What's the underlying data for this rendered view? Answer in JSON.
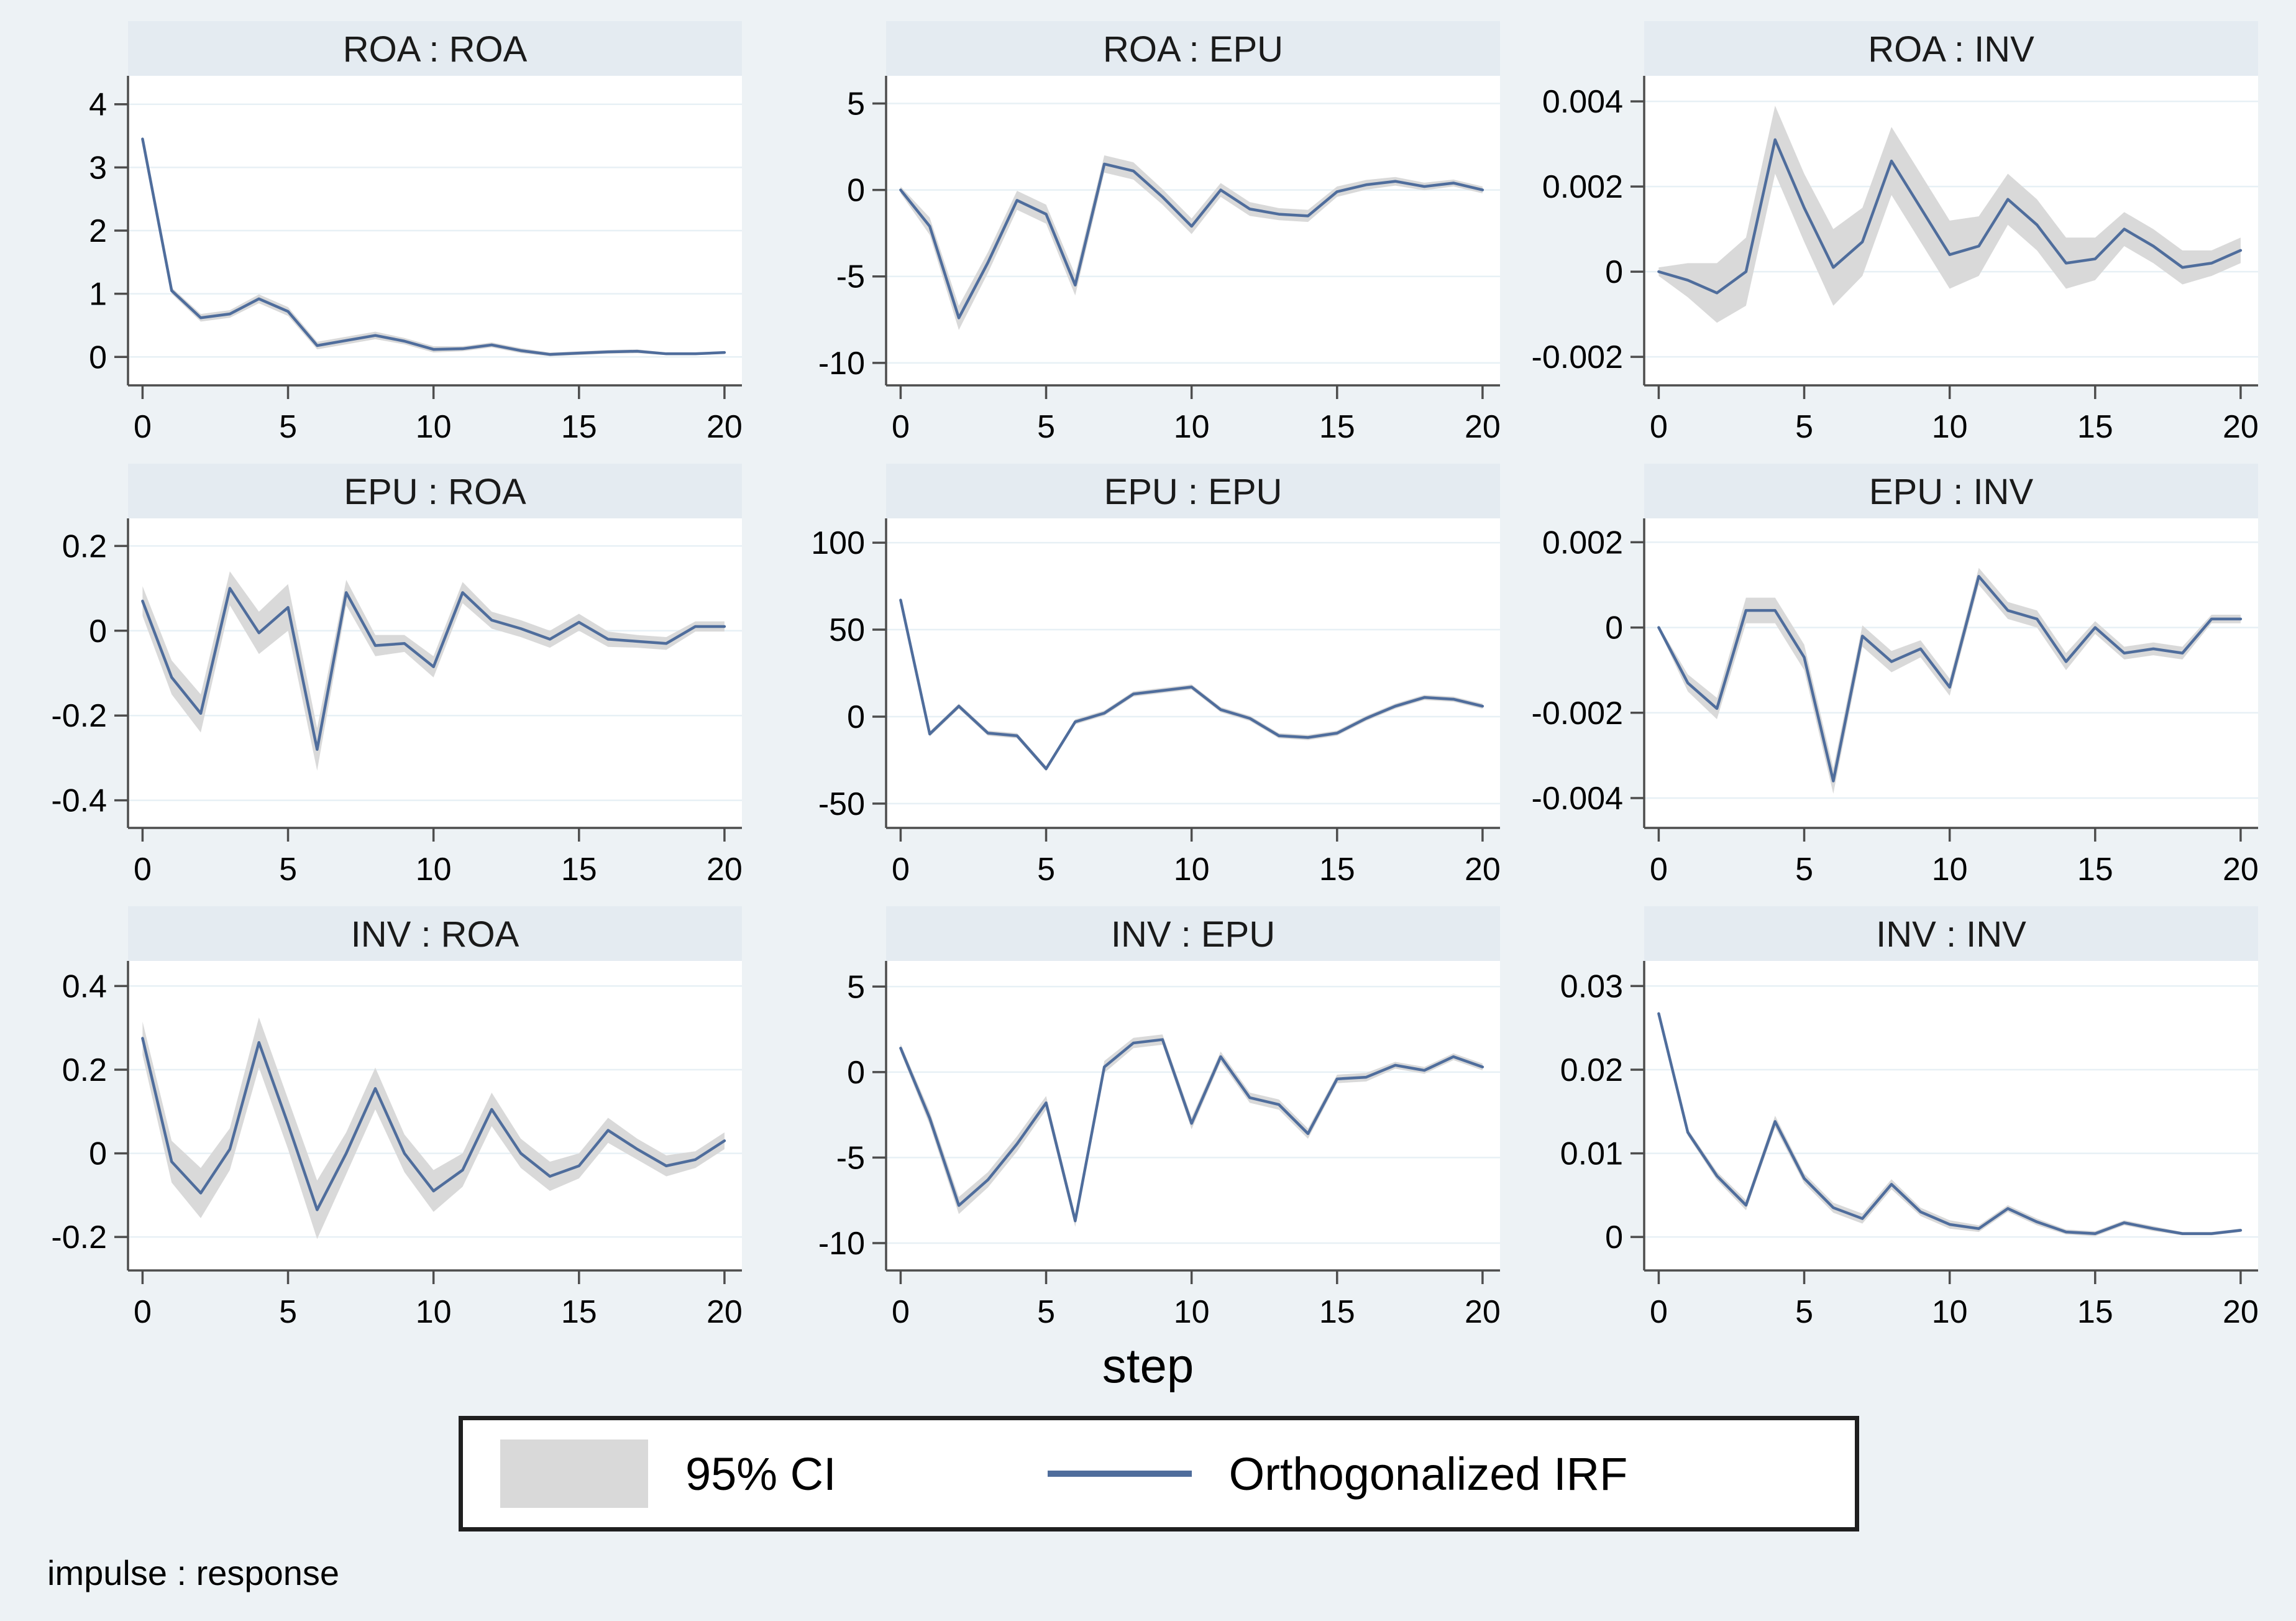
{
  "figure": {
    "xlabel": "step",
    "footnote": "impulse : response",
    "legend": {
      "ci_label": "95% CI",
      "irf_label": "Orthogonalized IRF"
    },
    "colors": {
      "background": "#edf2f5",
      "title_strip": "#e4ebf1",
      "plot_bg": "#ffffff",
      "gridline": "#e7f0f5",
      "axis": "#4d4d4d",
      "irf_line": "#4f6d9c",
      "ci_band": "#d9d9d9"
    }
  },
  "chart_data": [
    {
      "type": "line",
      "title": "ROA : ROA",
      "impulse": "ROA",
      "response": "ROA",
      "x": [
        0,
        1,
        2,
        3,
        4,
        5,
        6,
        7,
        8,
        9,
        10,
        11,
        12,
        13,
        14,
        15,
        16,
        17,
        18,
        19,
        20
      ],
      "xticks": [
        0,
        5,
        10,
        15,
        20
      ],
      "ylim": [
        -0.45,
        4.45
      ],
      "ytick_vals": [
        0,
        1,
        2,
        3,
        4
      ],
      "ytick_labels": [
        "0",
        "1",
        "2",
        "3",
        "4"
      ],
      "irf": [
        3.45,
        1.05,
        0.62,
        0.68,
        0.92,
        0.72,
        0.18,
        0.26,
        0.34,
        0.25,
        0.12,
        0.13,
        0.19,
        0.1,
        0.04,
        0.06,
        0.08,
        0.09,
        0.05,
        0.05,
        0.07
      ],
      "ci_lo": [
        3.41,
        1.0,
        0.56,
        0.62,
        0.85,
        0.65,
        0.12,
        0.2,
        0.28,
        0.2,
        0.07,
        0.09,
        0.15,
        0.06,
        0.01,
        0.03,
        0.05,
        0.06,
        0.03,
        0.03,
        0.05
      ],
      "ci_hi": [
        3.49,
        1.1,
        0.68,
        0.74,
        0.99,
        0.79,
        0.24,
        0.32,
        0.4,
        0.3,
        0.17,
        0.17,
        0.23,
        0.14,
        0.07,
        0.09,
        0.11,
        0.12,
        0.07,
        0.07,
        0.09
      ]
    },
    {
      "type": "line",
      "title": "ROA : EPU",
      "impulse": "ROA",
      "response": "EPU",
      "x": [
        0,
        1,
        2,
        3,
        4,
        5,
        6,
        7,
        8,
        9,
        10,
        11,
        12,
        13,
        14,
        15,
        16,
        17,
        18,
        19,
        20
      ],
      "xticks": [
        0,
        5,
        10,
        15,
        20
      ],
      "ylim": [
        -11.3,
        6.6
      ],
      "ytick_vals": [
        -10,
        -5,
        0,
        5
      ],
      "ytick_labels": [
        "-10",
        "-5",
        "0",
        "5"
      ],
      "irf": [
        0.0,
        -2.1,
        -7.4,
        -4.2,
        -0.6,
        -1.4,
        -5.5,
        1.5,
        1.1,
        -0.4,
        -2.1,
        0.0,
        -1.1,
        -1.4,
        -1.5,
        -0.1,
        0.3,
        0.5,
        0.2,
        0.4,
        0.0
      ],
      "ci_lo": [
        -0.2,
        -2.6,
        -8.1,
        -4.8,
        -1.15,
        -1.95,
        -6.1,
        1.0,
        0.6,
        -0.85,
        -2.55,
        -0.4,
        -1.5,
        -1.75,
        -1.85,
        -0.4,
        0.02,
        0.25,
        -0.02,
        0.2,
        -0.2
      ],
      "ci_hi": [
        0.2,
        -1.6,
        -6.7,
        -3.6,
        -0.05,
        -0.85,
        -4.9,
        2.0,
        1.6,
        0.05,
        -1.65,
        0.4,
        -0.7,
        -1.05,
        -1.15,
        0.2,
        0.58,
        0.75,
        0.42,
        0.6,
        0.2
      ]
    },
    {
      "type": "line",
      "title": "ROA : INV",
      "impulse": "ROA",
      "response": "INV",
      "x": [
        0,
        1,
        2,
        3,
        4,
        5,
        6,
        7,
        8,
        9,
        10,
        11,
        12,
        13,
        14,
        15,
        16,
        17,
        18,
        19,
        20
      ],
      "xticks": [
        0,
        5,
        10,
        15,
        20
      ],
      "ylim": [
        -0.00267,
        0.0046
      ],
      "ytick_vals": [
        -0.002,
        0,
        0.002,
        0.004
      ],
      "ytick_labels": [
        "-0.002",
        "0",
        "0.002",
        "0.004"
      ],
      "irf": [
        0.0,
        -0.0002,
        -0.0005,
        0.0,
        0.0031,
        0.0015,
        0.0001,
        0.0007,
        0.0026,
        0.0015,
        0.0004,
        0.0006,
        0.0017,
        0.0011,
        0.0002,
        0.0003,
        0.001,
        0.0006,
        0.0001,
        0.0002,
        0.0005
      ],
      "ci_lo": [
        -0.0001,
        -0.0006,
        -0.0012,
        -0.0008,
        0.0023,
        0.0007,
        -0.0008,
        -0.0001,
        0.0018,
        0.0007,
        -0.0004,
        -0.0001,
        0.0011,
        0.0005,
        -0.0004,
        -0.0002,
        0.0006,
        0.0002,
        -0.0003,
        -0.0001,
        0.0002
      ],
      "ci_hi": [
        0.0001,
        0.0002,
        0.0002,
        0.0008,
        0.0039,
        0.0023,
        0.001,
        0.0015,
        0.0034,
        0.0023,
        0.0012,
        0.0013,
        0.0023,
        0.0017,
        0.0008,
        0.0008,
        0.0014,
        0.001,
        0.0005,
        0.0005,
        0.0008
      ]
    },
    {
      "type": "line",
      "title": "EPU : ROA",
      "impulse": "EPU",
      "response": "ROA",
      "x": [
        0,
        1,
        2,
        3,
        4,
        5,
        6,
        7,
        8,
        9,
        10,
        11,
        12,
        13,
        14,
        15,
        16,
        17,
        18,
        19,
        20
      ],
      "xticks": [
        0,
        5,
        10,
        15,
        20
      ],
      "ylim": [
        -0.465,
        0.265
      ],
      "ytick_vals": [
        -0.4,
        -0.2,
        0,
        0.2
      ],
      "ytick_labels": [
        "-0.4",
        "-0.2",
        "0",
        "0.2"
      ],
      "irf": [
        0.07,
        -0.11,
        -0.195,
        0.1,
        -0.005,
        0.055,
        -0.28,
        0.09,
        -0.035,
        -0.03,
        -0.085,
        0.09,
        0.025,
        0.005,
        -0.02,
        0.02,
        -0.02,
        -0.025,
        -0.03,
        0.01,
        0.01
      ],
      "ci_lo": [
        0.035,
        -0.15,
        -0.24,
        0.06,
        -0.055,
        0.0,
        -0.33,
        0.06,
        -0.06,
        -0.05,
        -0.11,
        0.065,
        0.005,
        -0.015,
        -0.04,
        0.0,
        -0.038,
        -0.04,
        -0.045,
        -0.002,
        -0.002
      ],
      "ci_hi": [
        0.105,
        -0.07,
        -0.15,
        0.14,
        0.045,
        0.11,
        -0.23,
        0.12,
        -0.01,
        -0.01,
        -0.06,
        0.115,
        0.045,
        0.025,
        0.0,
        0.04,
        -0.002,
        -0.01,
        -0.015,
        0.022,
        0.022
      ]
    },
    {
      "type": "line",
      "title": "EPU : EPU",
      "impulse": "EPU",
      "response": "EPU",
      "x": [
        0,
        1,
        2,
        3,
        4,
        5,
        6,
        7,
        8,
        9,
        10,
        11,
        12,
        13,
        14,
        15,
        16,
        17,
        18,
        19,
        20
      ],
      "xticks": [
        0,
        5,
        10,
        15,
        20
      ],
      "ylim": [
        -64,
        114
      ],
      "ytick_vals": [
        -50,
        0,
        50,
        100
      ],
      "ytick_labels": [
        "-50",
        "0",
        "50",
        "100"
      ],
      "irf": [
        67,
        -10,
        6,
        -9.5,
        -11,
        -30,
        -3,
        2,
        13,
        15,
        17,
        4,
        -1,
        -11,
        -12,
        -9.5,
        -1,
        6,
        11,
        10,
        6
      ],
      "ci_lo": [
        65.5,
        -11.5,
        4.5,
        -11,
        -12.5,
        -31.5,
        -4.5,
        0.5,
        11.5,
        13.5,
        15.5,
        2.5,
        -2.5,
        -12.5,
        -13.5,
        -11,
        -2.5,
        4.5,
        9.5,
        8.5,
        4.5
      ],
      "ci_hi": [
        68.5,
        -8.5,
        7.5,
        -8,
        -9.5,
        -28.5,
        -1.5,
        3.5,
        14.5,
        16.5,
        18.5,
        5.5,
        0.5,
        -9.5,
        -10.5,
        -8,
        0.5,
        7.5,
        12.5,
        11.5,
        7.5
      ]
    },
    {
      "type": "line",
      "title": "EPU : INV",
      "impulse": "EPU",
      "response": "INV",
      "x": [
        0,
        1,
        2,
        3,
        4,
        5,
        6,
        7,
        8,
        9,
        10,
        11,
        12,
        13,
        14,
        15,
        16,
        17,
        18,
        19,
        20
      ],
      "xticks": [
        0,
        5,
        10,
        15,
        20
      ],
      "ylim": [
        -0.0047,
        0.00256
      ],
      "ytick_vals": [
        -0.004,
        -0.002,
        0,
        0.002
      ],
      "ytick_labels": [
        "-0.004",
        "-0.002",
        "0",
        "0.002"
      ],
      "irf": [
        0.0,
        -0.0013,
        -0.0019,
        0.0004,
        0.0004,
        -0.0007,
        -0.0036,
        -0.0002,
        -0.0008,
        -0.0005,
        -0.0014,
        0.0012,
        0.0004,
        0.0002,
        -0.0008,
        0.0,
        -0.0006,
        -0.0005,
        -0.0006,
        0.0002,
        0.0002
      ],
      "ci_lo": [
        -5e-05,
        -0.0015,
        -0.00215,
        0.0001,
        0.0001,
        -0.001,
        -0.0039,
        -0.00045,
        -0.00105,
        -0.0007,
        -0.0016,
        0.001,
        0.0002,
        0.0,
        -0.001,
        -0.00015,
        -0.00075,
        -0.00065,
        -0.00075,
        0.0001,
        0.0001
      ],
      "ci_hi": [
        5e-05,
        -0.0011,
        -0.00165,
        0.0007,
        0.0007,
        -0.0004,
        -0.0033,
        5e-05,
        -0.00055,
        -0.0003,
        -0.0012,
        0.0014,
        0.0006,
        0.0004,
        -0.0006,
        0.00015,
        -0.00045,
        -0.00035,
        -0.00045,
        0.0003,
        0.0003
      ]
    },
    {
      "type": "line",
      "title": "INV : ROA",
      "impulse": "INV",
      "response": "ROA",
      "x": [
        0,
        1,
        2,
        3,
        4,
        5,
        6,
        7,
        8,
        9,
        10,
        11,
        12,
        13,
        14,
        15,
        16,
        17,
        18,
        19,
        20
      ],
      "xticks": [
        0,
        5,
        10,
        15,
        20
      ],
      "ylim": [
        -0.28,
        0.46
      ],
      "ytick_vals": [
        -0.2,
        0,
        0.2,
        0.4
      ],
      "ytick_labels": [
        "-0.2",
        "0",
        "0.2",
        "0.4"
      ],
      "irf": [
        0.275,
        -0.02,
        -0.095,
        0.01,
        0.265,
        0.07,
        -0.135,
        0.0,
        0.155,
        0.0,
        -0.09,
        -0.04,
        0.105,
        0.0,
        -0.055,
        -0.03,
        0.055,
        0.01,
        -0.03,
        -0.015,
        0.03
      ],
      "ci_lo": [
        0.235,
        -0.07,
        -0.155,
        -0.04,
        0.205,
        0.01,
        -0.205,
        -0.05,
        0.105,
        -0.045,
        -0.14,
        -0.08,
        0.065,
        -0.035,
        -0.09,
        -0.06,
        0.025,
        -0.015,
        -0.055,
        -0.035,
        0.01
      ],
      "ci_hi": [
        0.315,
        0.03,
        -0.035,
        0.06,
        0.325,
        0.13,
        -0.065,
        0.05,
        0.205,
        0.045,
        -0.04,
        0.0,
        0.145,
        0.035,
        -0.02,
        0.0,
        0.085,
        0.035,
        -0.005,
        0.005,
        0.05
      ]
    },
    {
      "type": "line",
      "title": "INV : EPU",
      "impulse": "INV",
      "response": "EPU",
      "x": [
        0,
        1,
        2,
        3,
        4,
        5,
        6,
        7,
        8,
        9,
        10,
        11,
        12,
        13,
        14,
        15,
        16,
        17,
        18,
        19,
        20
      ],
      "xticks": [
        0,
        5,
        10,
        15,
        20
      ],
      "ylim": [
        -11.6,
        6.5
      ],
      "ytick_vals": [
        -10,
        -5,
        0,
        5
      ],
      "ytick_labels": [
        "-10",
        "-5",
        "0",
        "5"
      ],
      "irf": [
        1.4,
        -2.7,
        -7.8,
        -6.3,
        -4.2,
        -1.8,
        -8.7,
        0.3,
        1.7,
        1.9,
        -3.0,
        0.9,
        -1.5,
        -1.9,
        -3.6,
        -0.4,
        -0.3,
        0.4,
        0.1,
        0.9,
        0.3
      ],
      "ci_lo": [
        1.15,
        -3.1,
        -8.3,
        -6.75,
        -4.65,
        -2.2,
        -9.05,
        -0.05,
        1.4,
        1.6,
        -3.35,
        0.6,
        -1.8,
        -2.2,
        -3.9,
        -0.65,
        -0.55,
        0.2,
        -0.1,
        0.7,
        0.1
      ],
      "ci_hi": [
        1.65,
        -2.3,
        -7.3,
        -5.85,
        -3.75,
        -1.4,
        -8.35,
        0.65,
        2.0,
        2.2,
        -2.65,
        1.2,
        -1.2,
        -1.6,
        -3.3,
        -0.15,
        -0.05,
        0.6,
        0.3,
        1.1,
        0.5
      ]
    },
    {
      "type": "line",
      "title": "INV : INV",
      "impulse": "INV",
      "response": "INV",
      "x": [
        0,
        1,
        2,
        3,
        4,
        5,
        6,
        7,
        8,
        9,
        10,
        11,
        12,
        13,
        14,
        15,
        16,
        17,
        18,
        19,
        20
      ],
      "xticks": [
        0,
        5,
        10,
        15,
        20
      ],
      "ylim": [
        -0.004,
        0.033
      ],
      "ytick_vals": [
        0,
        0.01,
        0.02,
        0.03
      ],
      "ytick_labels": [
        "0",
        "0.01",
        "0.02",
        "0.03"
      ],
      "irf": [
        0.0267,
        0.0125,
        0.0073,
        0.0038,
        0.0138,
        0.007,
        0.0035,
        0.0022,
        0.0063,
        0.003,
        0.0015,
        0.001,
        0.0034,
        0.0018,
        0.0006,
        0.0004,
        0.0017,
        0.001,
        0.0004,
        0.0004,
        0.0008
      ],
      "ci_lo": [
        0.0266,
        0.0121,
        0.0068,
        0.0032,
        0.0131,
        0.0064,
        0.0029,
        0.0016,
        0.0057,
        0.0025,
        0.001,
        0.0006,
        0.003,
        0.0014,
        0.0003,
        0.0001,
        0.0014,
        0.0007,
        0.0002,
        0.0002,
        0.0006
      ],
      "ci_hi": [
        0.0268,
        0.0129,
        0.0078,
        0.0044,
        0.0145,
        0.0076,
        0.0041,
        0.0028,
        0.0069,
        0.0035,
        0.002,
        0.0014,
        0.0038,
        0.0022,
        0.0009,
        0.0007,
        0.002,
        0.0013,
        0.0006,
        0.0006,
        0.001
      ]
    }
  ]
}
